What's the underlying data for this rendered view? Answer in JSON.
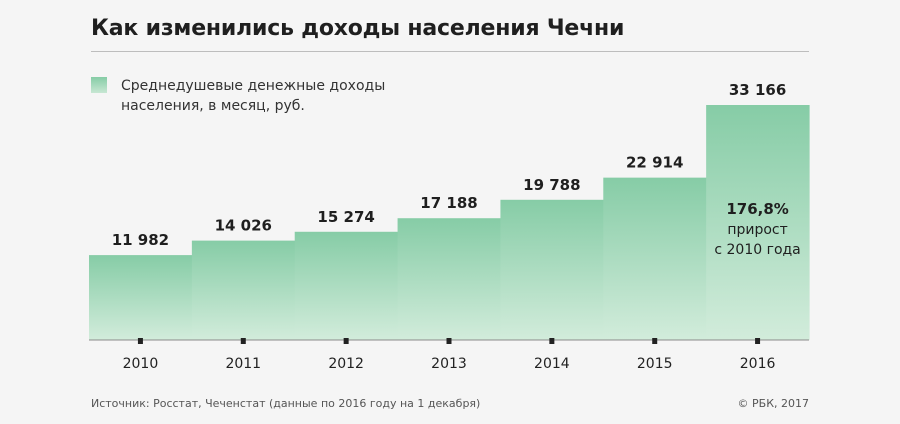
{
  "header": {
    "title": "Как изменились доходы населения Чечни",
    "legend_line1": "Среднедушевые денежные доходы",
    "legend_line2": "населения, в месяц, руб."
  },
  "footer": {
    "source": "Источник: Росстат, Чеченстат (данные по 2016 году на 1 декабря)",
    "credit": "© РБК, 2017"
  },
  "colors": {
    "bar_top": "#86cca6",
    "bar_bottom": "#d2ecdb",
    "text": "#222222"
  },
  "chart_data": {
    "type": "bar",
    "title": "Как изменились доходы населения Чечни",
    "xlabel": "",
    "ylabel": "Среднедушевые денежные доходы населения, в месяц, руб.",
    "ylim": [
      0,
      33166
    ],
    "categories": [
      "2010",
      "2011",
      "2012",
      "2013",
      "2014",
      "2015",
      "2016"
    ],
    "values": [
      11982,
      14026,
      15274,
      17188,
      19788,
      22914,
      33166
    ],
    "value_labels": [
      "11 982",
      "14 026",
      "15 274",
      "17 188",
      "19 788",
      "22 914",
      "33 166"
    ],
    "annotation": {
      "category": "2016",
      "lines": [
        "176,8%",
        "прирост",
        "с 2010 года"
      ]
    }
  }
}
